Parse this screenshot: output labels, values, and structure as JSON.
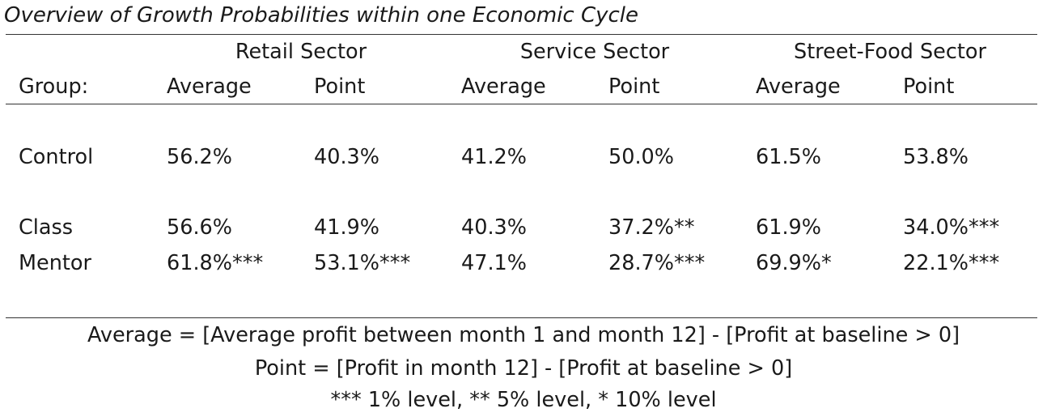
{
  "title": "Overview of Growth Probabilities within one Economic Cycle",
  "sectors": [
    "Retail Sector",
    "Service Sector",
    "Street-Food Sector"
  ],
  "group_label": "Group:",
  "measure_labels": [
    "Average",
    "Point",
    "Average",
    "Point",
    "Average",
    "Point"
  ],
  "rows": [
    {
      "group": "Control",
      "values": [
        "56.2%",
        "40.3%",
        "41.2%",
        "50.0%",
        "61.5%",
        "53.8%"
      ]
    },
    {
      "group": "Class",
      "values": [
        "56.6%",
        "41.9%",
        "40.3%",
        "37.2%**",
        "61.9%",
        "34.0%***"
      ]
    },
    {
      "group": "Mentor",
      "values": [
        "61.8%***",
        "53.1%***",
        "47.1%",
        "28.7%***",
        "69.9%*",
        "22.1%***"
      ]
    }
  ],
  "notes": [
    "Average = [Average profit between month 1 and month 12] - [Profit at baseline > 0]",
    "Point = [Profit in month 12] - [Profit at baseline > 0]",
    "*** 1% level, ** 5% level, * 10% level"
  ]
}
